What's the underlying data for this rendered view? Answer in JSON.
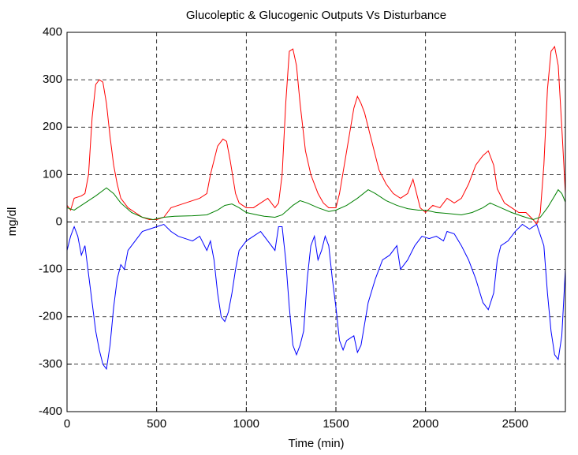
{
  "chart_data": {
    "type": "line",
    "title": "Glucoleptic & Glucogenic Outputs Vs Disturbance",
    "x_label": "Time (min)",
    "y_label": "mg/dl",
    "xlim": [
      0,
      2780
    ],
    "ylim": [
      -400,
      400
    ],
    "xticks": [
      0,
      500,
      1000,
      1500,
      2000,
      2500
    ],
    "yticks": [
      -400,
      -300,
      -200,
      -100,
      0,
      100,
      200,
      300,
      400
    ],
    "grid": true,
    "series": [
      {
        "color": "#ff0000",
        "x": [
          0,
          20,
          40,
          80,
          100,
          120,
          140,
          160,
          180,
          200,
          220,
          240,
          260,
          280,
          300,
          340,
          380,
          420,
          460,
          500,
          540,
          580,
          620,
          660,
          700,
          740,
          780,
          800,
          840,
          870,
          890,
          910,
          940,
          960,
          1000,
          1040,
          1080,
          1120,
          1160,
          1180,
          1200,
          1220,
          1240,
          1260,
          1280,
          1300,
          1330,
          1360,
          1380,
          1400,
          1430,
          1460,
          1500,
          1520,
          1560,
          1600,
          1620,
          1640,
          1660,
          1700,
          1740,
          1780,
          1820,
          1860,
          1900,
          1930,
          1950,
          1970,
          2000,
          2040,
          2080,
          2120,
          2160,
          2200,
          2240,
          2280,
          2320,
          2350,
          2380,
          2400,
          2440,
          2480,
          2520,
          2560,
          2600,
          2620,
          2640,
          2660,
          2680,
          2700,
          2720,
          2740,
          2760,
          2780
        ],
        "values": [
          35,
          25,
          50,
          55,
          60,
          100,
          220,
          290,
          300,
          295,
          250,
          180,
          120,
          80,
          50,
          30,
          20,
          10,
          5,
          5,
          10,
          30,
          35,
          40,
          45,
          50,
          60,
          100,
          160,
          175,
          170,
          130,
          60,
          40,
          30,
          30,
          40,
          50,
          30,
          40,
          100,
          250,
          360,
          365,
          330,
          250,
          150,
          100,
          80,
          60,
          40,
          30,
          30,
          60,
          150,
          240,
          265,
          250,
          230,
          170,
          110,
          80,
          60,
          50,
          60,
          90,
          60,
          30,
          20,
          35,
          30,
          50,
          40,
          50,
          80,
          120,
          140,
          150,
          120,
          70,
          40,
          30,
          20,
          20,
          5,
          -5,
          20,
          120,
          280,
          360,
          370,
          330,
          200,
          60
        ]
      },
      {
        "color": "#008000",
        "x": [
          0,
          40,
          100,
          160,
          220,
          260,
          300,
          360,
          420,
          480,
          540,
          600,
          700,
          780,
          840,
          880,
          920,
          960,
          1000,
          1060,
          1100,
          1160,
          1200,
          1260,
          1300,
          1340,
          1400,
          1460,
          1500,
          1560,
          1620,
          1680,
          1720,
          1780,
          1840,
          1900,
          1960,
          2000,
          2060,
          2120,
          2200,
          2260,
          2320,
          2360,
          2420,
          2480,
          2540,
          2600,
          2640,
          2680,
          2720,
          2740,
          2760,
          2780
        ],
        "values": [
          30,
          25,
          40,
          55,
          72,
          60,
          40,
          20,
          10,
          5,
          10,
          12,
          13,
          15,
          25,
          35,
          38,
          30,
          20,
          15,
          12,
          10,
          15,
          35,
          45,
          40,
          30,
          22,
          25,
          35,
          50,
          68,
          60,
          45,
          35,
          28,
          25,
          25,
          20,
          18,
          15,
          20,
          30,
          40,
          30,
          20,
          12,
          5,
          10,
          30,
          55,
          68,
          60,
          42
        ]
      },
      {
        "color": "#0000ff",
        "x": [
          0,
          20,
          40,
          60,
          80,
          100,
          120,
          140,
          160,
          180,
          200,
          220,
          240,
          260,
          280,
          300,
          320,
          340,
          360,
          380,
          420,
          460,
          500,
          540,
          580,
          620,
          660,
          700,
          740,
          780,
          800,
          820,
          840,
          860,
          880,
          900,
          920,
          940,
          960,
          1000,
          1040,
          1080,
          1120,
          1160,
          1180,
          1200,
          1220,
          1240,
          1260,
          1280,
          1300,
          1320,
          1340,
          1360,
          1380,
          1400,
          1420,
          1440,
          1460,
          1480,
          1500,
          1520,
          1540,
          1560,
          1600,
          1620,
          1640,
          1680,
          1720,
          1760,
          1800,
          1840,
          1860,
          1900,
          1940,
          1980,
          2020,
          2060,
          2100,
          2120,
          2160,
          2200,
          2240,
          2280,
          2320,
          2350,
          2380,
          2400,
          2420,
          2460,
          2500,
          2540,
          2580,
          2620,
          2660,
          2680,
          2700,
          2720,
          2740,
          2760,
          2780
        ],
        "values": [
          -60,
          -30,
          -10,
          -30,
          -70,
          -50,
          -110,
          -170,
          -230,
          -270,
          -300,
          -310,
          -260,
          -180,
          -120,
          -90,
          -100,
          -60,
          -50,
          -40,
          -20,
          -15,
          -10,
          -5,
          -20,
          -30,
          -35,
          -40,
          -30,
          -60,
          -40,
          -80,
          -150,
          -200,
          -210,
          -190,
          -150,
          -100,
          -60,
          -40,
          -30,
          -20,
          -40,
          -60,
          -10,
          -10,
          -80,
          -180,
          -260,
          -280,
          -260,
          -230,
          -120,
          -50,
          -30,
          -80,
          -60,
          -30,
          -50,
          -120,
          -180,
          -250,
          -270,
          -250,
          -240,
          -275,
          -260,
          -170,
          -120,
          -80,
          -70,
          -50,
          -100,
          -80,
          -50,
          -30,
          -35,
          -30,
          -40,
          -20,
          -25,
          -50,
          -80,
          -120,
          -170,
          -185,
          -150,
          -80,
          -50,
          -40,
          -20,
          -5,
          -15,
          -5,
          -50,
          -150,
          -230,
          -280,
          -290,
          -240,
          -100
        ]
      }
    ]
  }
}
